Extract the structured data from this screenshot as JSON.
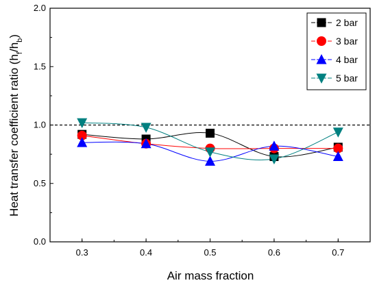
{
  "chart_data": {
    "type": "scatter",
    "xlabel": "Air mass fraction",
    "ylabel": "Heat transfer coefficient ratio (h",
    "ylabel_sub1": "f",
    "ylabel_mid": "/h",
    "ylabel_sub2": "b",
    "ylabel_end": ")",
    "xlim": [
      0.25,
      0.75
    ],
    "ylim": [
      0.0,
      2.0
    ],
    "x_ticks": [
      "0.3",
      "0.4",
      "0.5",
      "0.6",
      "0.7"
    ],
    "y_ticks": [
      "0.0",
      "0.5",
      "1.0",
      "1.5",
      "2.0"
    ],
    "reference_line": {
      "y": 1.0,
      "style": "dashed"
    },
    "grid": false,
    "legend_position": "top-right",
    "x": [
      0.3,
      0.4,
      0.5,
      0.6,
      0.7
    ],
    "series": [
      {
        "name": "2 bar",
        "marker": "square",
        "color": "#000000",
        "y": [
          0.92,
          0.88,
          0.93,
          0.73,
          0.81
        ]
      },
      {
        "name": "3 bar",
        "marker": "circle",
        "color": "#ff0000",
        "y": [
          0.91,
          0.84,
          0.8,
          0.8,
          0.8
        ]
      },
      {
        "name": "4 bar",
        "marker": "triangle-up",
        "color": "#0000ff",
        "y": [
          0.85,
          0.84,
          0.69,
          0.82,
          0.73
        ]
      },
      {
        "name": "5 bar",
        "marker": "triangle-down",
        "color": "#008080",
        "y": [
          1.02,
          0.98,
          0.77,
          0.71,
          0.94
        ]
      }
    ]
  }
}
